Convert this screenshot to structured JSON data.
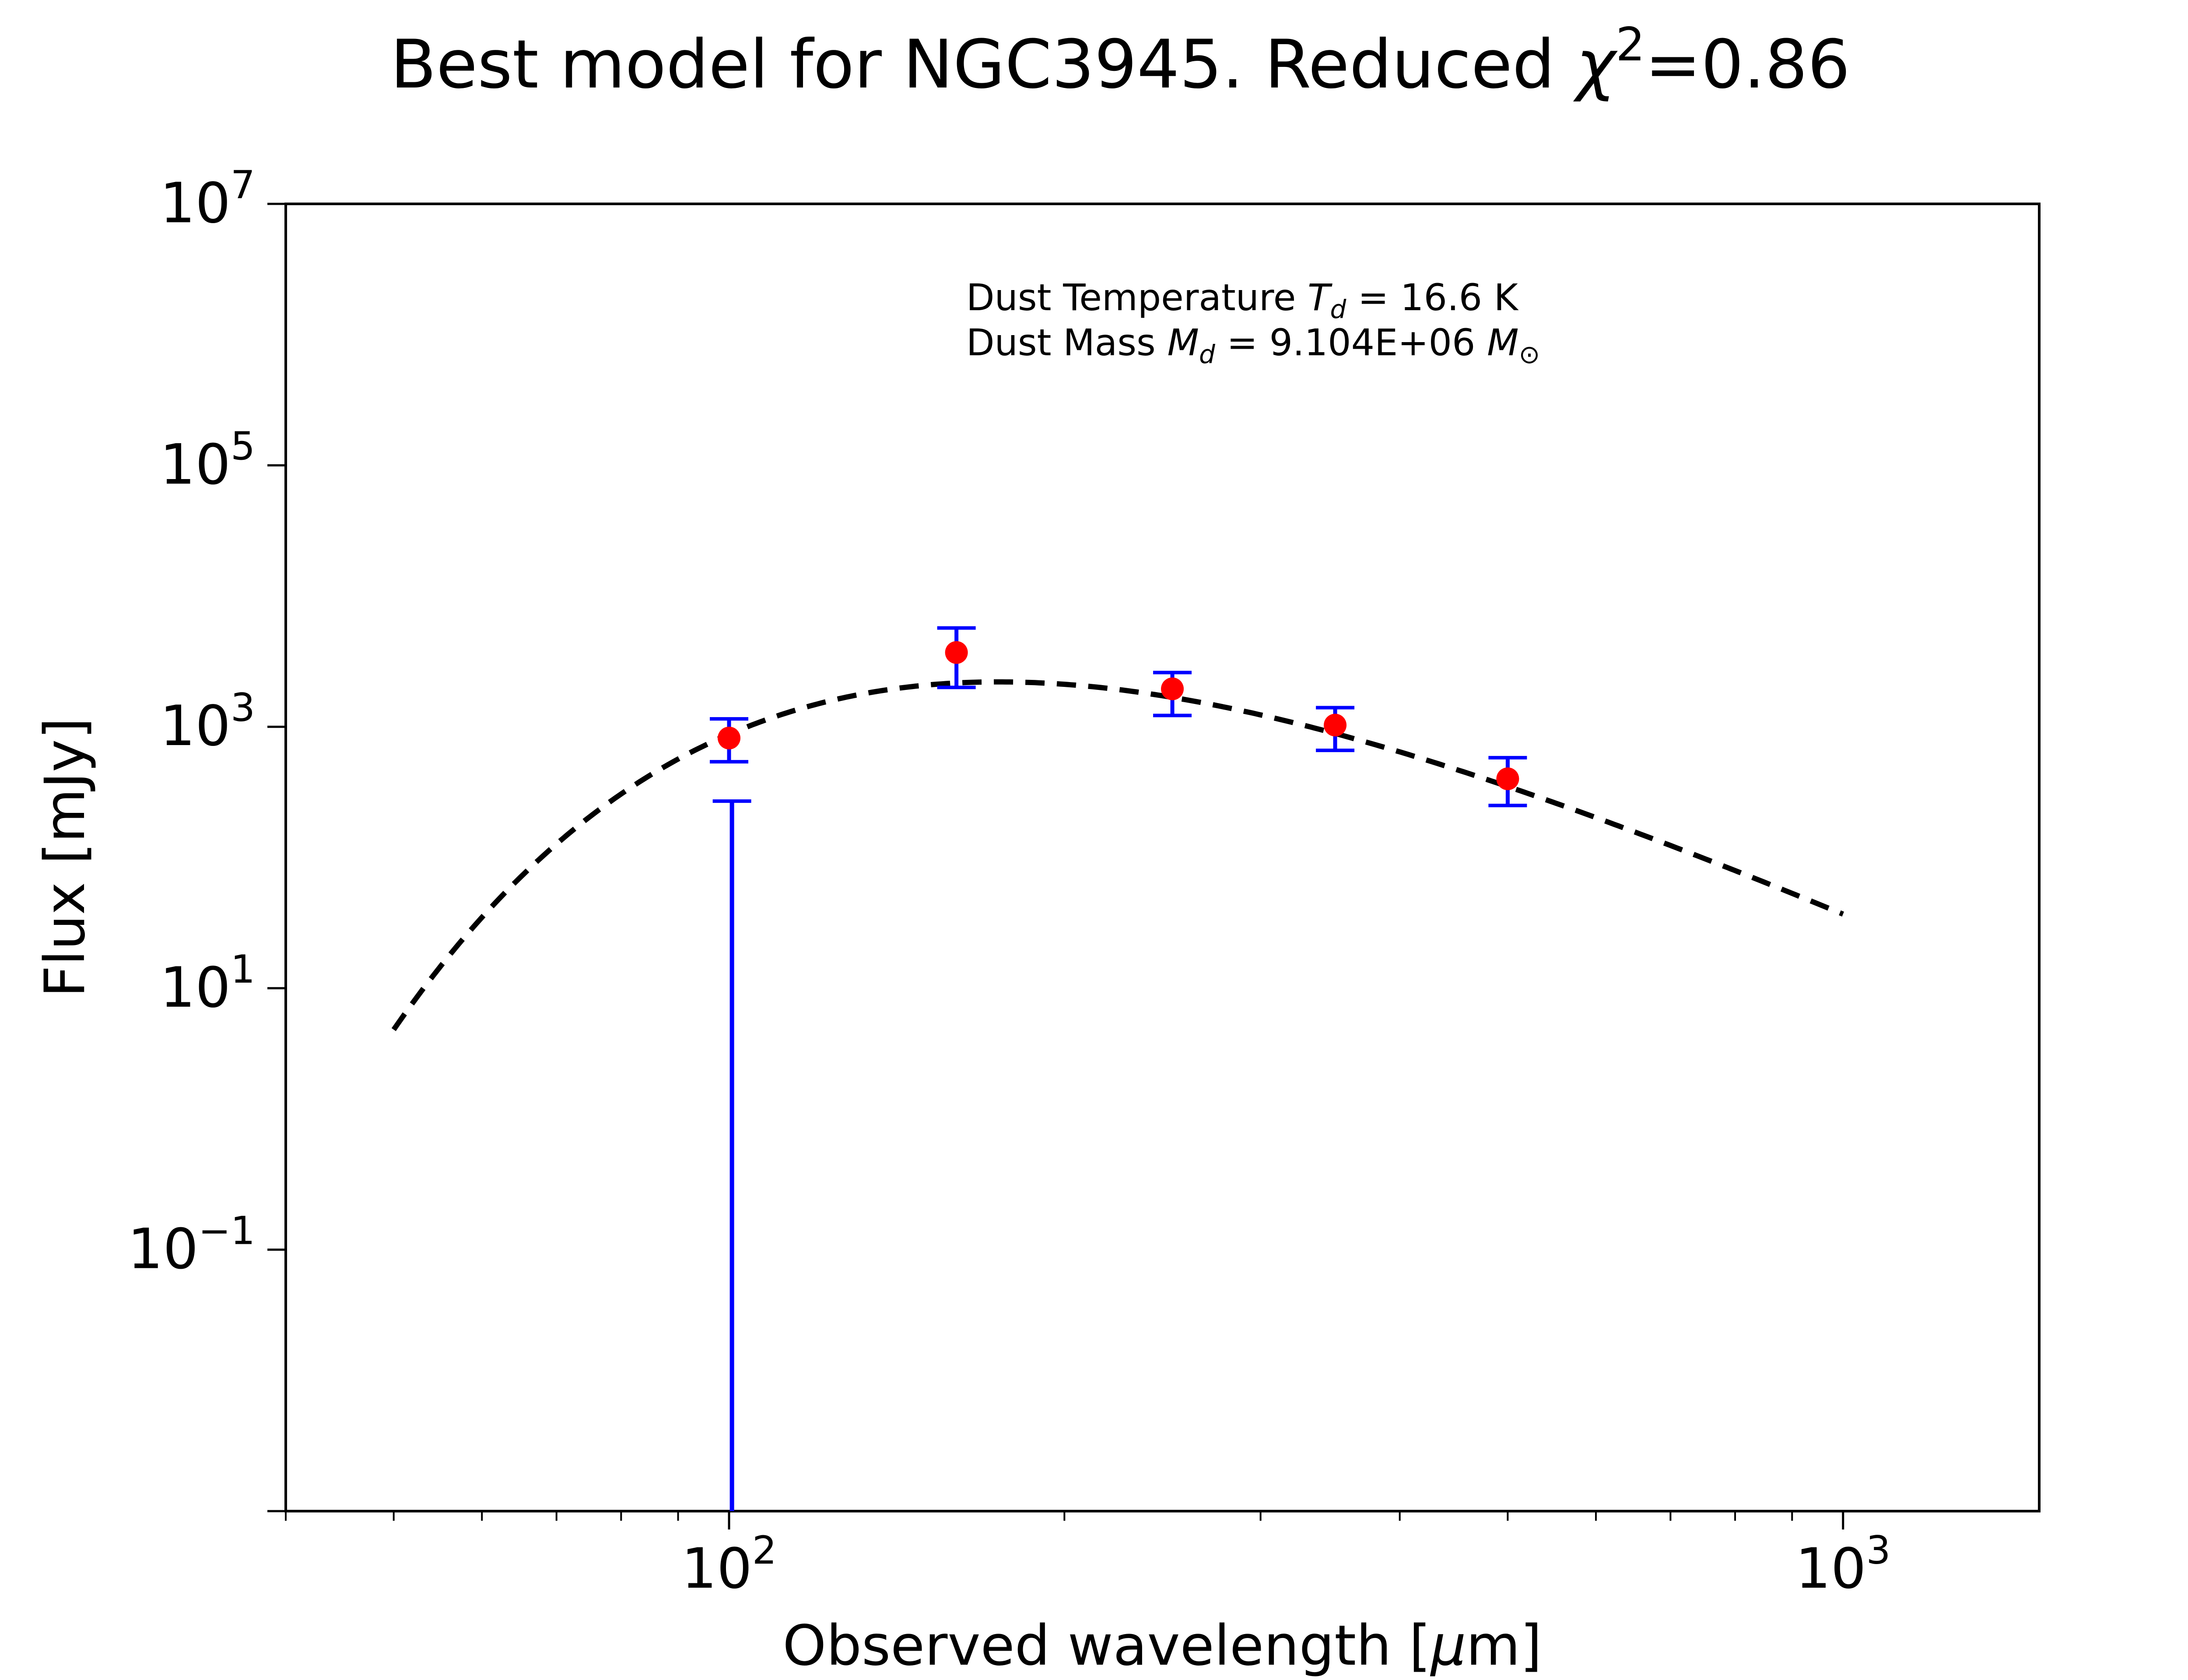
{
  "chart_data": {
    "type": "scatter",
    "title_main": "Best model for NGC3945. Reduced ",
    "title_chi": "χ",
    "title_sup": "2",
    "title_tail": "=0.86",
    "xlabel_main": "Observed wavelength [",
    "xlabel_mu": "μ",
    "xlabel_tail": "m]",
    "ylabel": "Flux [mJy]",
    "x_scale": "log",
    "y_scale": "log",
    "xlim": [
      40,
      1500
    ],
    "ylim": [
      0.001,
      10000000
    ],
    "x_ticks": [
      {
        "value": 100,
        "base": "10",
        "exp": "2"
      },
      {
        "value": 1000,
        "base": "10",
        "exp": "3"
      }
    ],
    "y_ticks": [
      {
        "value": 0.1,
        "base": "10",
        "exp": "−1"
      },
      {
        "value": 10,
        "base": "10",
        "exp": "1"
      },
      {
        "value": 1000,
        "base": "10",
        "exp": "3"
      },
      {
        "value": 100000,
        "base": "10",
        "exp": "5"
      },
      {
        "value": 10000000,
        "base": "10",
        "exp": "7"
      }
    ],
    "annotation": {
      "line1_pre": "Dust Temperature ",
      "line1_var": "T",
      "line1_sub": "d",
      "line1_post": " = 16.6 K",
      "line2_pre": "Dust Mass ",
      "line2_var": "M",
      "line2_sub": "d",
      "line2_mid": " = 9.104E+06 ",
      "line2_unit": "M",
      "line2_unit_sub": "⊙"
    },
    "series": [
      {
        "kind": "points",
        "color": "#ff0000",
        "errorbar_color": "#0000ff",
        "x": [
          100,
          160,
          250,
          350,
          500
        ],
        "y": [
          820,
          3700,
          1950,
          1030,
          400
        ],
        "y_low": [
          540,
          2000,
          1220,
          660,
          250
        ],
        "y_high": [
          1150,
          5700,
          2600,
          1400,
          580
        ]
      },
      {
        "kind": "upper-limit",
        "color": "#0000ff",
        "x": [
          100.6
        ],
        "y_low": [
          0.001
        ],
        "y_high": [
          270
        ]
      },
      {
        "kind": "model",
        "style": "dashed",
        "color": "#000000",
        "temperature_K": 16.6,
        "x_range": [
          50,
          1000
        ]
      }
    ]
  }
}
